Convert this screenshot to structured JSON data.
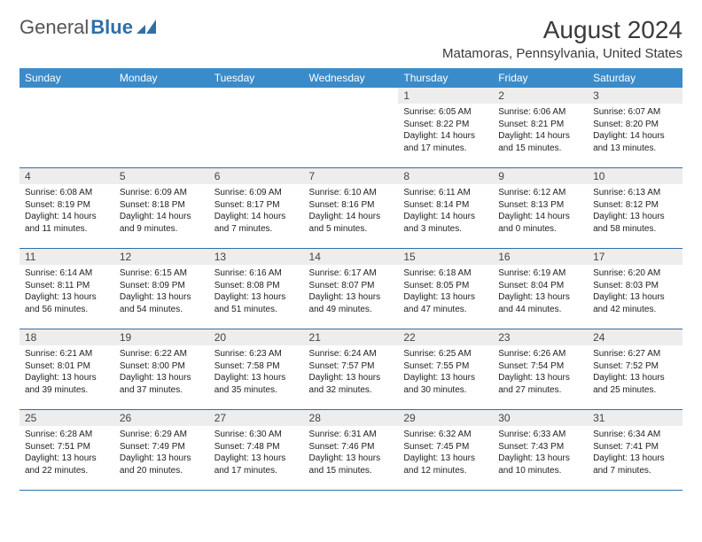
{
  "brand": {
    "name1": "General",
    "name2": "Blue"
  },
  "title": "August 2024",
  "location": "Matamoras, Pennsylvania, United States",
  "colors": {
    "header_bg": "#3a8bc9",
    "header_fg": "#ffffff",
    "daynum_bg": "#ededed",
    "rule": "#2f6fa8",
    "text": "#222222",
    "title": "#3a3a3a"
  },
  "typography": {
    "month_title_pt": 28,
    "location_pt": 15,
    "dayheader_pt": 12,
    "daynum_pt": 12,
    "body_pt": 10
  },
  "layout": {
    "cols": 7,
    "rows": 5
  },
  "day_headers": [
    "Sunday",
    "Monday",
    "Tuesday",
    "Wednesday",
    "Thursday",
    "Friday",
    "Saturday"
  ],
  "weeks": [
    [
      {
        "n": "",
        "sunrise": "",
        "sunset": "",
        "daylight": ""
      },
      {
        "n": "",
        "sunrise": "",
        "sunset": "",
        "daylight": ""
      },
      {
        "n": "",
        "sunrise": "",
        "sunset": "",
        "daylight": ""
      },
      {
        "n": "",
        "sunrise": "",
        "sunset": "",
        "daylight": ""
      },
      {
        "n": "1",
        "sunrise": "Sunrise: 6:05 AM",
        "sunset": "Sunset: 8:22 PM",
        "daylight": "Daylight: 14 hours and 17 minutes."
      },
      {
        "n": "2",
        "sunrise": "Sunrise: 6:06 AM",
        "sunset": "Sunset: 8:21 PM",
        "daylight": "Daylight: 14 hours and 15 minutes."
      },
      {
        "n": "3",
        "sunrise": "Sunrise: 6:07 AM",
        "sunset": "Sunset: 8:20 PM",
        "daylight": "Daylight: 14 hours and 13 minutes."
      }
    ],
    [
      {
        "n": "4",
        "sunrise": "Sunrise: 6:08 AM",
        "sunset": "Sunset: 8:19 PM",
        "daylight": "Daylight: 14 hours and 11 minutes."
      },
      {
        "n": "5",
        "sunrise": "Sunrise: 6:09 AM",
        "sunset": "Sunset: 8:18 PM",
        "daylight": "Daylight: 14 hours and 9 minutes."
      },
      {
        "n": "6",
        "sunrise": "Sunrise: 6:09 AM",
        "sunset": "Sunset: 8:17 PM",
        "daylight": "Daylight: 14 hours and 7 minutes."
      },
      {
        "n": "7",
        "sunrise": "Sunrise: 6:10 AM",
        "sunset": "Sunset: 8:16 PM",
        "daylight": "Daylight: 14 hours and 5 minutes."
      },
      {
        "n": "8",
        "sunrise": "Sunrise: 6:11 AM",
        "sunset": "Sunset: 8:14 PM",
        "daylight": "Daylight: 14 hours and 3 minutes."
      },
      {
        "n": "9",
        "sunrise": "Sunrise: 6:12 AM",
        "sunset": "Sunset: 8:13 PM",
        "daylight": "Daylight: 14 hours and 0 minutes."
      },
      {
        "n": "10",
        "sunrise": "Sunrise: 6:13 AM",
        "sunset": "Sunset: 8:12 PM",
        "daylight": "Daylight: 13 hours and 58 minutes."
      }
    ],
    [
      {
        "n": "11",
        "sunrise": "Sunrise: 6:14 AM",
        "sunset": "Sunset: 8:11 PM",
        "daylight": "Daylight: 13 hours and 56 minutes."
      },
      {
        "n": "12",
        "sunrise": "Sunrise: 6:15 AM",
        "sunset": "Sunset: 8:09 PM",
        "daylight": "Daylight: 13 hours and 54 minutes."
      },
      {
        "n": "13",
        "sunrise": "Sunrise: 6:16 AM",
        "sunset": "Sunset: 8:08 PM",
        "daylight": "Daylight: 13 hours and 51 minutes."
      },
      {
        "n": "14",
        "sunrise": "Sunrise: 6:17 AM",
        "sunset": "Sunset: 8:07 PM",
        "daylight": "Daylight: 13 hours and 49 minutes."
      },
      {
        "n": "15",
        "sunrise": "Sunrise: 6:18 AM",
        "sunset": "Sunset: 8:05 PM",
        "daylight": "Daylight: 13 hours and 47 minutes."
      },
      {
        "n": "16",
        "sunrise": "Sunrise: 6:19 AM",
        "sunset": "Sunset: 8:04 PM",
        "daylight": "Daylight: 13 hours and 44 minutes."
      },
      {
        "n": "17",
        "sunrise": "Sunrise: 6:20 AM",
        "sunset": "Sunset: 8:03 PM",
        "daylight": "Daylight: 13 hours and 42 minutes."
      }
    ],
    [
      {
        "n": "18",
        "sunrise": "Sunrise: 6:21 AM",
        "sunset": "Sunset: 8:01 PM",
        "daylight": "Daylight: 13 hours and 39 minutes."
      },
      {
        "n": "19",
        "sunrise": "Sunrise: 6:22 AM",
        "sunset": "Sunset: 8:00 PM",
        "daylight": "Daylight: 13 hours and 37 minutes."
      },
      {
        "n": "20",
        "sunrise": "Sunrise: 6:23 AM",
        "sunset": "Sunset: 7:58 PM",
        "daylight": "Daylight: 13 hours and 35 minutes."
      },
      {
        "n": "21",
        "sunrise": "Sunrise: 6:24 AM",
        "sunset": "Sunset: 7:57 PM",
        "daylight": "Daylight: 13 hours and 32 minutes."
      },
      {
        "n": "22",
        "sunrise": "Sunrise: 6:25 AM",
        "sunset": "Sunset: 7:55 PM",
        "daylight": "Daylight: 13 hours and 30 minutes."
      },
      {
        "n": "23",
        "sunrise": "Sunrise: 6:26 AM",
        "sunset": "Sunset: 7:54 PM",
        "daylight": "Daylight: 13 hours and 27 minutes."
      },
      {
        "n": "24",
        "sunrise": "Sunrise: 6:27 AM",
        "sunset": "Sunset: 7:52 PM",
        "daylight": "Daylight: 13 hours and 25 minutes."
      }
    ],
    [
      {
        "n": "25",
        "sunrise": "Sunrise: 6:28 AM",
        "sunset": "Sunset: 7:51 PM",
        "daylight": "Daylight: 13 hours and 22 minutes."
      },
      {
        "n": "26",
        "sunrise": "Sunrise: 6:29 AM",
        "sunset": "Sunset: 7:49 PM",
        "daylight": "Daylight: 13 hours and 20 minutes."
      },
      {
        "n": "27",
        "sunrise": "Sunrise: 6:30 AM",
        "sunset": "Sunset: 7:48 PM",
        "daylight": "Daylight: 13 hours and 17 minutes."
      },
      {
        "n": "28",
        "sunrise": "Sunrise: 6:31 AM",
        "sunset": "Sunset: 7:46 PM",
        "daylight": "Daylight: 13 hours and 15 minutes."
      },
      {
        "n": "29",
        "sunrise": "Sunrise: 6:32 AM",
        "sunset": "Sunset: 7:45 PM",
        "daylight": "Daylight: 13 hours and 12 minutes."
      },
      {
        "n": "30",
        "sunrise": "Sunrise: 6:33 AM",
        "sunset": "Sunset: 7:43 PM",
        "daylight": "Daylight: 13 hours and 10 minutes."
      },
      {
        "n": "31",
        "sunrise": "Sunrise: 6:34 AM",
        "sunset": "Sunset: 7:41 PM",
        "daylight": "Daylight: 13 hours and 7 minutes."
      }
    ]
  ]
}
